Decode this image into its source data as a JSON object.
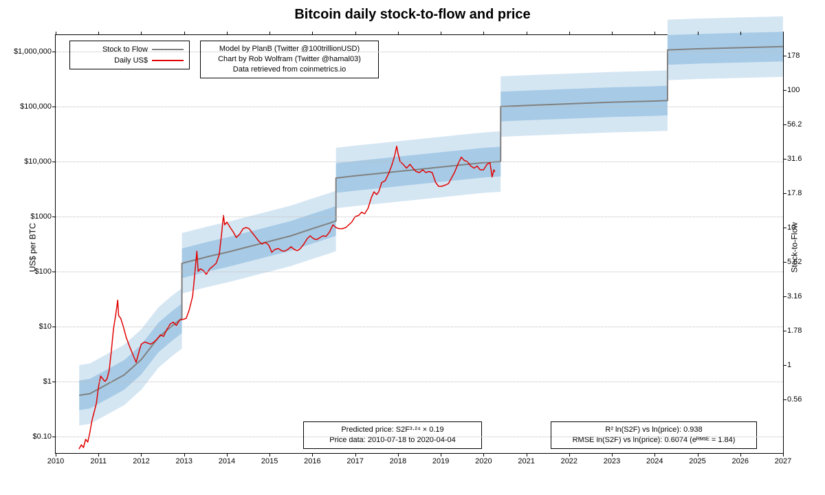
{
  "title": "Bitcoin daily stock-to-flow and price",
  "y_axis_left": {
    "label": "US$ per BTC"
  },
  "y_axis_right": {
    "label": "Stock-to-Flow"
  },
  "chart": {
    "type": "line",
    "background_color": "#ffffff",
    "grid_color": "#bbbbbb",
    "plot_border_color": "#000000",
    "y_scale": "log",
    "y_range_log10": [
      -1.3,
      6.3
    ],
    "x_range_year": [
      2010,
      2027
    ],
    "x_ticks": [
      "2010",
      "2011",
      "2012",
      "2013",
      "2014",
      "2015",
      "2016",
      "2017",
      "2018",
      "2019",
      "2020",
      "2021",
      "2022",
      "2023",
      "2024",
      "2025",
      "2026",
      "2027"
    ],
    "y_ticks_left": [
      {
        "v": -1,
        "label": "$0.10"
      },
      {
        "v": 0,
        "label": "$1"
      },
      {
        "v": 1,
        "label": "$10"
      },
      {
        "v": 2,
        "label": "$100"
      },
      {
        "v": 3,
        "label": "$1000"
      },
      {
        "v": 4,
        "label": "$10,000"
      },
      {
        "v": 5,
        "label": "$100,000"
      },
      {
        "v": 6,
        "label": "$1,000,000"
      }
    ],
    "y_ticks_right": [
      {
        "v": -0.25,
        "label": "0.56"
      },
      {
        "v": 0,
        "label": "1"
      },
      {
        "v": 0.25,
        "label": "1.78"
      },
      {
        "v": 0.5,
        "label": "3.16"
      },
      {
        "v": 0.75,
        "label": "5.62"
      },
      {
        "v": 1,
        "label": "10"
      },
      {
        "v": 1.25,
        "label": "17.8"
      },
      {
        "v": 1.5,
        "label": "31.6"
      },
      {
        "v": 1.75,
        "label": "56.2"
      },
      {
        "v": 2,
        "label": "100"
      },
      {
        "v": 2.25,
        "label": "178"
      }
    ],
    "s2f_yright_to_yleft_scale": 2.5,
    "s2f_yright_to_yleft_offset": 0.3,
    "title_fontsize": 20,
    "tick_fontsize": 11,
    "label_fontsize": 12
  },
  "legend": {
    "rows": [
      {
        "label": "Stock to Flow",
        "color": "#808080",
        "width": 2
      },
      {
        "label": "Daily US$",
        "color": "#e20000",
        "width": 2
      }
    ]
  },
  "credits": {
    "line1": "Model by PlanB (Twitter @100trillionUSD)",
    "line2": "Chart by Rob Wolfram (Twitter @hamal03)",
    "line3": "Data retrieved from coinmetrics.io"
  },
  "footer_left": {
    "line1": "Predicted price: S2F³·²⁴ × 0.19",
    "line2": "Price data: 2010-07-18 to 2020-04-04"
  },
  "footer_right": {
    "line1": "R² ln(S2F) vs ln(price): 0.938",
    "line2": "RMSE ln(S2F) vs ln(price): 0.6074 (eᴿᴹˢᴱ = 1.84)"
  },
  "bands": {
    "outer_color": "#d5e6f3",
    "inner_color": "#a7cbe6",
    "outer_half_log10": 0.55,
    "inner_half_log10": 0.27
  },
  "s2f_model": {
    "color": "#808080",
    "width": 2,
    "points_year_log10price": [
      [
        2010.55,
        -0.25
      ],
      [
        2010.8,
        -0.22
      ],
      [
        2011.2,
        -0.05
      ],
      [
        2011.6,
        0.12
      ],
      [
        2012.0,
        0.4
      ],
      [
        2012.4,
        0.8
      ],
      [
        2012.7,
        1.0
      ],
      [
        2012.95,
        1.15
      ],
      [
        2012.95,
        2.15
      ],
      [
        2013.2,
        2.2
      ],
      [
        2013.6,
        2.28
      ],
      [
        2014.0,
        2.35
      ],
      [
        2014.5,
        2.45
      ],
      [
        2015.0,
        2.55
      ],
      [
        2015.5,
        2.65
      ],
      [
        2016.0,
        2.78
      ],
      [
        2016.4,
        2.88
      ],
      [
        2016.55,
        2.92
      ],
      [
        2016.55,
        3.7
      ],
      [
        2017.0,
        3.74
      ],
      [
        2017.5,
        3.78
      ],
      [
        2018.0,
        3.82
      ],
      [
        2018.5,
        3.86
      ],
      [
        2019.0,
        3.9
      ],
      [
        2019.5,
        3.94
      ],
      [
        2020.0,
        3.98
      ],
      [
        2020.4,
        4.0
      ],
      [
        2020.4,
        5.0
      ],
      [
        2021.0,
        5.02
      ],
      [
        2022.0,
        5.05
      ],
      [
        2023.0,
        5.08
      ],
      [
        2024.0,
        5.1
      ],
      [
        2024.3,
        5.11
      ],
      [
        2024.3,
        6.03
      ],
      [
        2025.0,
        6.05
      ],
      [
        2026.0,
        6.07
      ],
      [
        2027.0,
        6.09
      ]
    ]
  },
  "price": {
    "color": "#e20000",
    "width": 1.5,
    "points_year_log10price": [
      [
        2010.55,
        -1.22
      ],
      [
        2010.6,
        -1.15
      ],
      [
        2010.65,
        -1.2
      ],
      [
        2010.7,
        -1.05
      ],
      [
        2010.75,
        -1.1
      ],
      [
        2010.8,
        -0.92
      ],
      [
        2010.85,
        -0.7
      ],
      [
        2010.9,
        -0.55
      ],
      [
        2010.95,
        -0.4
      ],
      [
        2011.0,
        -0.1
      ],
      [
        2011.05,
        0.1
      ],
      [
        2011.1,
        0.05
      ],
      [
        2011.15,
        0.0
      ],
      [
        2011.2,
        0.05
      ],
      [
        2011.25,
        0.2
      ],
      [
        2011.3,
        0.55
      ],
      [
        2011.35,
        0.95
      ],
      [
        2011.4,
        1.2
      ],
      [
        2011.45,
        1.48
      ],
      [
        2011.47,
        1.2
      ],
      [
        2011.52,
        1.15
      ],
      [
        2011.58,
        1.0
      ],
      [
        2011.65,
        0.8
      ],
      [
        2011.72,
        0.65
      ],
      [
        2011.8,
        0.5
      ],
      [
        2011.88,
        0.35
      ],
      [
        2011.95,
        0.55
      ],
      [
        2012.0,
        0.68
      ],
      [
        2012.08,
        0.72
      ],
      [
        2012.15,
        0.7
      ],
      [
        2012.22,
        0.68
      ],
      [
        2012.3,
        0.72
      ],
      [
        2012.38,
        0.78
      ],
      [
        2012.45,
        0.85
      ],
      [
        2012.52,
        0.82
      ],
      [
        2012.6,
        0.95
      ],
      [
        2012.68,
        1.05
      ],
      [
        2012.75,
        1.08
      ],
      [
        2012.82,
        1.02
      ],
      [
        2012.9,
        1.12
      ],
      [
        2012.98,
        1.13
      ],
      [
        2013.05,
        1.15
      ],
      [
        2013.12,
        1.3
      ],
      [
        2013.2,
        1.55
      ],
      [
        2013.25,
        1.95
      ],
      [
        2013.3,
        2.37
      ],
      [
        2013.33,
        2.0
      ],
      [
        2013.38,
        2.05
      ],
      [
        2013.45,
        2.02
      ],
      [
        2013.52,
        1.95
      ],
      [
        2013.6,
        2.05
      ],
      [
        2013.68,
        2.1
      ],
      [
        2013.75,
        2.15
      ],
      [
        2013.82,
        2.3
      ],
      [
        2013.88,
        2.7
      ],
      [
        2013.92,
        3.02
      ],
      [
        2013.95,
        2.85
      ],
      [
        2014.0,
        2.9
      ],
      [
        2014.08,
        2.8
      ],
      [
        2014.15,
        2.72
      ],
      [
        2014.22,
        2.62
      ],
      [
        2014.3,
        2.68
      ],
      [
        2014.38,
        2.78
      ],
      [
        2014.45,
        2.8
      ],
      [
        2014.52,
        2.78
      ],
      [
        2014.6,
        2.7
      ],
      [
        2014.68,
        2.62
      ],
      [
        2014.75,
        2.55
      ],
      [
        2014.82,
        2.5
      ],
      [
        2014.9,
        2.53
      ],
      [
        2014.98,
        2.48
      ],
      [
        2015.05,
        2.35
      ],
      [
        2015.12,
        2.4
      ],
      [
        2015.2,
        2.42
      ],
      [
        2015.28,
        2.38
      ],
      [
        2015.35,
        2.37
      ],
      [
        2015.42,
        2.4
      ],
      [
        2015.5,
        2.45
      ],
      [
        2015.58,
        2.4
      ],
      [
        2015.65,
        2.38
      ],
      [
        2015.72,
        2.42
      ],
      [
        2015.8,
        2.5
      ],
      [
        2015.88,
        2.6
      ],
      [
        2015.95,
        2.65
      ],
      [
        2016.02,
        2.6
      ],
      [
        2016.1,
        2.58
      ],
      [
        2016.18,
        2.62
      ],
      [
        2016.25,
        2.65
      ],
      [
        2016.32,
        2.64
      ],
      [
        2016.4,
        2.72
      ],
      [
        2016.48,
        2.85
      ],
      [
        2016.55,
        2.8
      ],
      [
        2016.62,
        2.78
      ],
      [
        2016.7,
        2.78
      ],
      [
        2016.78,
        2.8
      ],
      [
        2016.85,
        2.85
      ],
      [
        2016.92,
        2.9
      ],
      [
        2017.0,
        3.0
      ],
      [
        2017.08,
        3.02
      ],
      [
        2017.15,
        3.08
      ],
      [
        2017.22,
        3.05
      ],
      [
        2017.3,
        3.15
      ],
      [
        2017.38,
        3.35
      ],
      [
        2017.44,
        3.45
      ],
      [
        2017.5,
        3.4
      ],
      [
        2017.55,
        3.45
      ],
      [
        2017.62,
        3.62
      ],
      [
        2017.7,
        3.65
      ],
      [
        2017.78,
        3.78
      ],
      [
        2017.85,
        3.92
      ],
      [
        2017.92,
        4.1
      ],
      [
        2017.97,
        4.28
      ],
      [
        2018.0,
        4.15
      ],
      [
        2018.05,
        4.0
      ],
      [
        2018.12,
        3.95
      ],
      [
        2018.2,
        3.88
      ],
      [
        2018.28,
        3.95
      ],
      [
        2018.35,
        3.88
      ],
      [
        2018.42,
        3.82
      ],
      [
        2018.5,
        3.8
      ],
      [
        2018.58,
        3.85
      ],
      [
        2018.65,
        3.8
      ],
      [
        2018.72,
        3.82
      ],
      [
        2018.8,
        3.8
      ],
      [
        2018.88,
        3.62
      ],
      [
        2018.95,
        3.55
      ],
      [
        2019.02,
        3.55
      ],
      [
        2019.1,
        3.57
      ],
      [
        2019.18,
        3.6
      ],
      [
        2019.25,
        3.7
      ],
      [
        2019.32,
        3.8
      ],
      [
        2019.4,
        3.95
      ],
      [
        2019.48,
        4.08
      ],
      [
        2019.55,
        4.02
      ],
      [
        2019.62,
        4.0
      ],
      [
        2019.7,
        3.92
      ],
      [
        2019.78,
        3.88
      ],
      [
        2019.85,
        3.92
      ],
      [
        2019.92,
        3.85
      ],
      [
        2020.0,
        3.85
      ],
      [
        2020.08,
        3.95
      ],
      [
        2020.15,
        3.98
      ],
      [
        2020.2,
        3.72
      ],
      [
        2020.24,
        3.85
      ],
      [
        2020.26,
        3.82
      ]
    ]
  }
}
